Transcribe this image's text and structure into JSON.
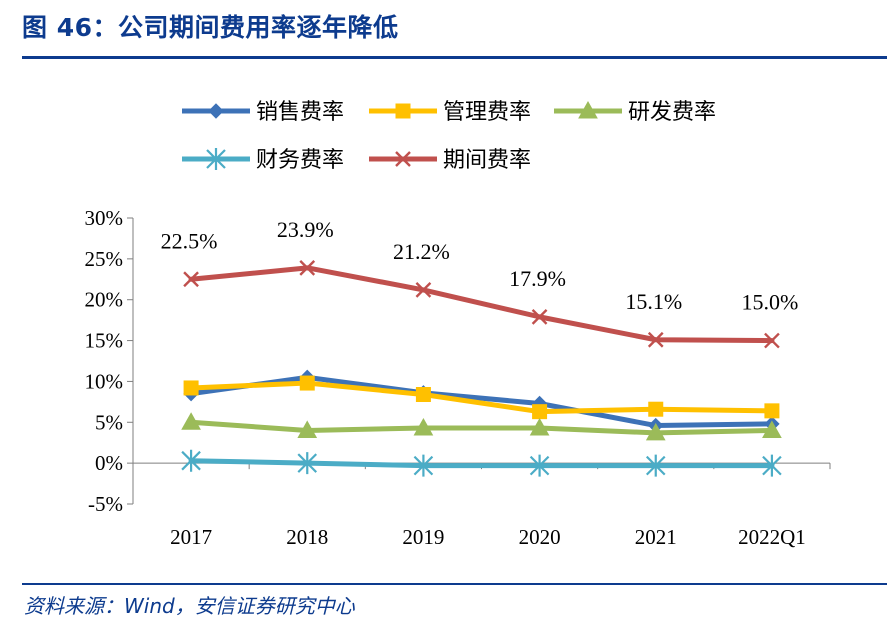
{
  "figure": {
    "title": "图 46：公司期间费用率逐年降低",
    "source": "资料来源：Wind，安信证券研究中心"
  },
  "chart_data": {
    "type": "line",
    "title": "",
    "xlabel": "",
    "ylabel": "",
    "categories": [
      "2017",
      "2018",
      "2019",
      "2020",
      "2021",
      "2022Q1"
    ],
    "ylim": [
      -5,
      30
    ],
    "yticks": [
      -5,
      0,
      5,
      10,
      15,
      20,
      25,
      30
    ],
    "ytick_labels": [
      "-5%",
      "0%",
      "5%",
      "10%",
      "15%",
      "20%",
      "25%",
      "30%"
    ],
    "legend_position": "top",
    "series": [
      {
        "name": "销售费率",
        "color": "#3d72b7",
        "marker": "diamond",
        "values": [
          8.5,
          10.5,
          8.6,
          7.3,
          4.6,
          4.8
        ]
      },
      {
        "name": "管理费率",
        "color": "#ffc000",
        "marker": "square",
        "values": [
          9.2,
          9.8,
          8.4,
          6.3,
          6.6,
          6.4
        ]
      },
      {
        "name": "研发费率",
        "color": "#9bbb59",
        "marker": "triangle",
        "values": [
          5.0,
          4.0,
          4.3,
          4.3,
          3.7,
          4.0
        ]
      },
      {
        "name": "财务费率",
        "color": "#4bacc6",
        "marker": "star",
        "values": [
          0.3,
          0.0,
          -0.3,
          -0.3,
          -0.3,
          -0.3
        ]
      },
      {
        "name": "期间费率",
        "color": "#c0504d",
        "marker": "x",
        "values": [
          22.5,
          23.9,
          21.2,
          17.9,
          15.1,
          15.0
        ]
      }
    ],
    "annotations": {
      "series": "期间费率",
      "labels": [
        "22.5%",
        "23.9%",
        "21.2%",
        "17.9%",
        "15.1%",
        "15.0%"
      ]
    }
  }
}
